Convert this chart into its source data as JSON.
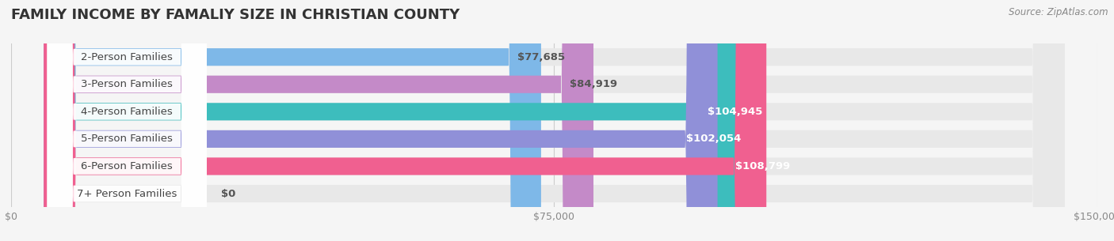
{
  "title": "FAMILY INCOME BY FAMALIY SIZE IN CHRISTIAN COUNTY",
  "source": "Source: ZipAtlas.com",
  "categories": [
    "2-Person Families",
    "3-Person Families",
    "4-Person Families",
    "5-Person Families",
    "6-Person Families",
    "7+ Person Families"
  ],
  "values": [
    77685,
    84919,
    104945,
    102054,
    108799,
    0
  ],
  "bar_colors": [
    "#7EB8E8",
    "#C48AC8",
    "#3DBDBD",
    "#9090D8",
    "#F06090",
    "#F5C896"
  ],
  "label_colors": [
    "#555555",
    "#555555",
    "#ffffff",
    "#ffffff",
    "#ffffff",
    "#555555"
  ],
  "xlim": [
    0,
    150000
  ],
  "xticks": [
    0,
    75000,
    150000
  ],
  "xtick_labels": [
    "$0",
    "$75,000",
    "$150,000"
  ],
  "value_labels": [
    "$77,685",
    "$84,919",
    "$104,945",
    "$102,054",
    "$108,799",
    "$0"
  ],
  "bg_color": "#f5f5f5",
  "bar_bg_color": "#e8e8e8",
  "title_fontsize": 13,
  "label_fontsize": 9.5,
  "value_fontsize": 9.5,
  "tick_fontsize": 9
}
